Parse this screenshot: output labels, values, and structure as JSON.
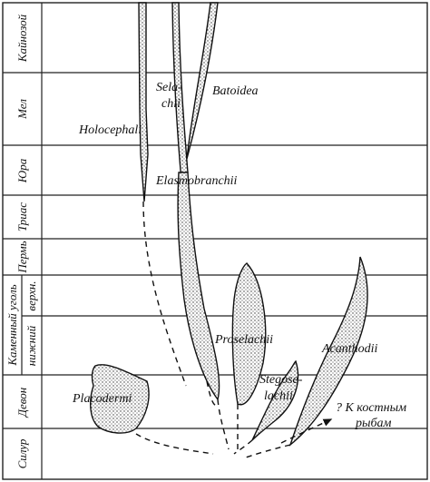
{
  "periods": [
    "Кайнозой",
    "Мел",
    "Юра",
    "Триас",
    "Пермь"
  ],
  "carboniferous": {
    "label": "Каменный уголь",
    "sub": [
      "верхн.",
      "нижний"
    ]
  },
  "lower_periods": [
    "Девон",
    "Силур"
  ],
  "taxa": {
    "selachii": [
      "Sela-",
      "chii"
    ],
    "batoidea": "Batoidea",
    "holocephali": "Holocephali",
    "elasmobranchii": "Elasmobranchii",
    "proselachii": "Proselachii",
    "stegoselachii": [
      "Stegose-",
      "lachii"
    ],
    "acanthodii": "Acanthodii",
    "placodermi": "Placodermi",
    "bony": [
      "? К костным",
      "рыбам"
    ]
  }
}
